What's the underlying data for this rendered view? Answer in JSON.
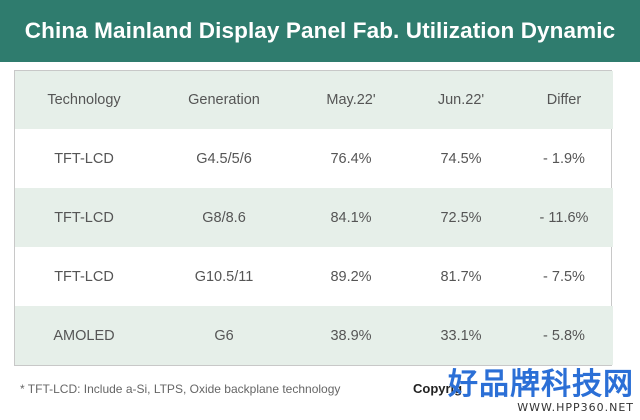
{
  "title": "China Mainland Display Panel Fab. Utilization Dynamic",
  "table": {
    "headers": [
      "Technology",
      "Generation",
      "May.22'",
      "Jun.22'",
      "Differ"
    ],
    "rows": [
      [
        "TFT-LCD",
        "G4.5/5/6",
        "76.4%",
        "74.5%",
        "- 1.9%"
      ],
      [
        "TFT-LCD",
        "G8/8.6",
        "84.1%",
        "72.5%",
        "- 11.6%"
      ],
      [
        "TFT-LCD",
        "G10.5/11",
        "89.2%",
        "81.7%",
        "- 7.5%"
      ],
      [
        "AMOLED",
        "G6",
        "38.9%",
        "33.1%",
        "- 5.8%"
      ]
    ]
  },
  "footnote": "* TFT-LCD: Include a-Si, LTPS, Oxide backplane technology",
  "copyright": "Copyrig",
  "watermark": {
    "text": "好品牌科技网",
    "url": "WWW.HPP360.NET"
  },
  "colors": {
    "title_background": "#2f7c6e",
    "shaded_row": "#e6efe9",
    "watermark": "#2b6fd6"
  }
}
